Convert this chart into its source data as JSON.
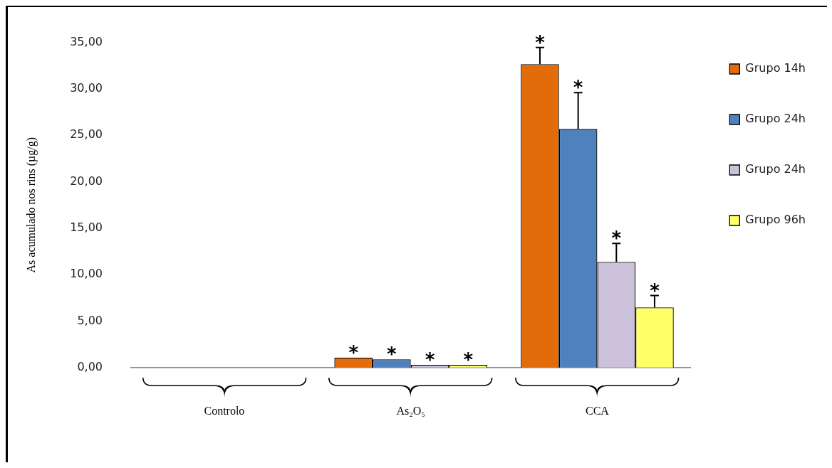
{
  "chart_data": {
    "type": "bar",
    "ylabel": "As acumulado nos rins (µg/g)",
    "categories": [
      "Controlo",
      "As₂O₅",
      "CCA"
    ],
    "series": [
      {
        "name": "Grupo 14h",
        "color": "#e36c0a",
        "values": [
          0,
          1.08,
          32.66
        ],
        "errors": [
          null,
          null,
          [
            32.66,
            34.45
          ]
        ],
        "value_labels": [
          null,
          "*",
          "*"
        ]
      },
      {
        "name": "Grupo 24h",
        "color": "#4f81bd",
        "values": [
          0,
          0.89,
          25.68
        ],
        "errors": [
          null,
          null,
          [
            25.68,
            29.6
          ]
        ],
        "value_labels": [
          null,
          "*",
          "*"
        ]
      },
      {
        "name": "Grupo 24h",
        "color": "#ccc1da",
        "values": [
          0,
          0.3,
          11.38
        ],
        "errors": [
          null,
          null,
          [
            11.38,
            13.37
          ]
        ],
        "value_labels": [
          null,
          "*",
          "*"
        ]
      },
      {
        "name": "Grupo 96h",
        "color": "#ffff66",
        "values": [
          0,
          0.3,
          6.48
        ],
        "errors": [
          null,
          null,
          [
            6.48,
            7.75
          ]
        ],
        "value_labels": [
          null,
          "*",
          "*"
        ]
      }
    ],
    "ylim": [
      0,
      35
    ],
    "yticks": [
      {
        "value": 0,
        "label": "0,00"
      },
      {
        "value": 5,
        "label": "5,00"
      },
      {
        "value": 10,
        "label": "10,00"
      },
      {
        "value": 15,
        "label": "15,00"
      },
      {
        "value": 20,
        "label": "20,00"
      },
      {
        "value": 25,
        "label": "25,00"
      },
      {
        "value": 30,
        "label": "30,00"
      },
      {
        "value": 35,
        "label": "35,00"
      }
    ],
    "grid": false,
    "legend": "right"
  }
}
